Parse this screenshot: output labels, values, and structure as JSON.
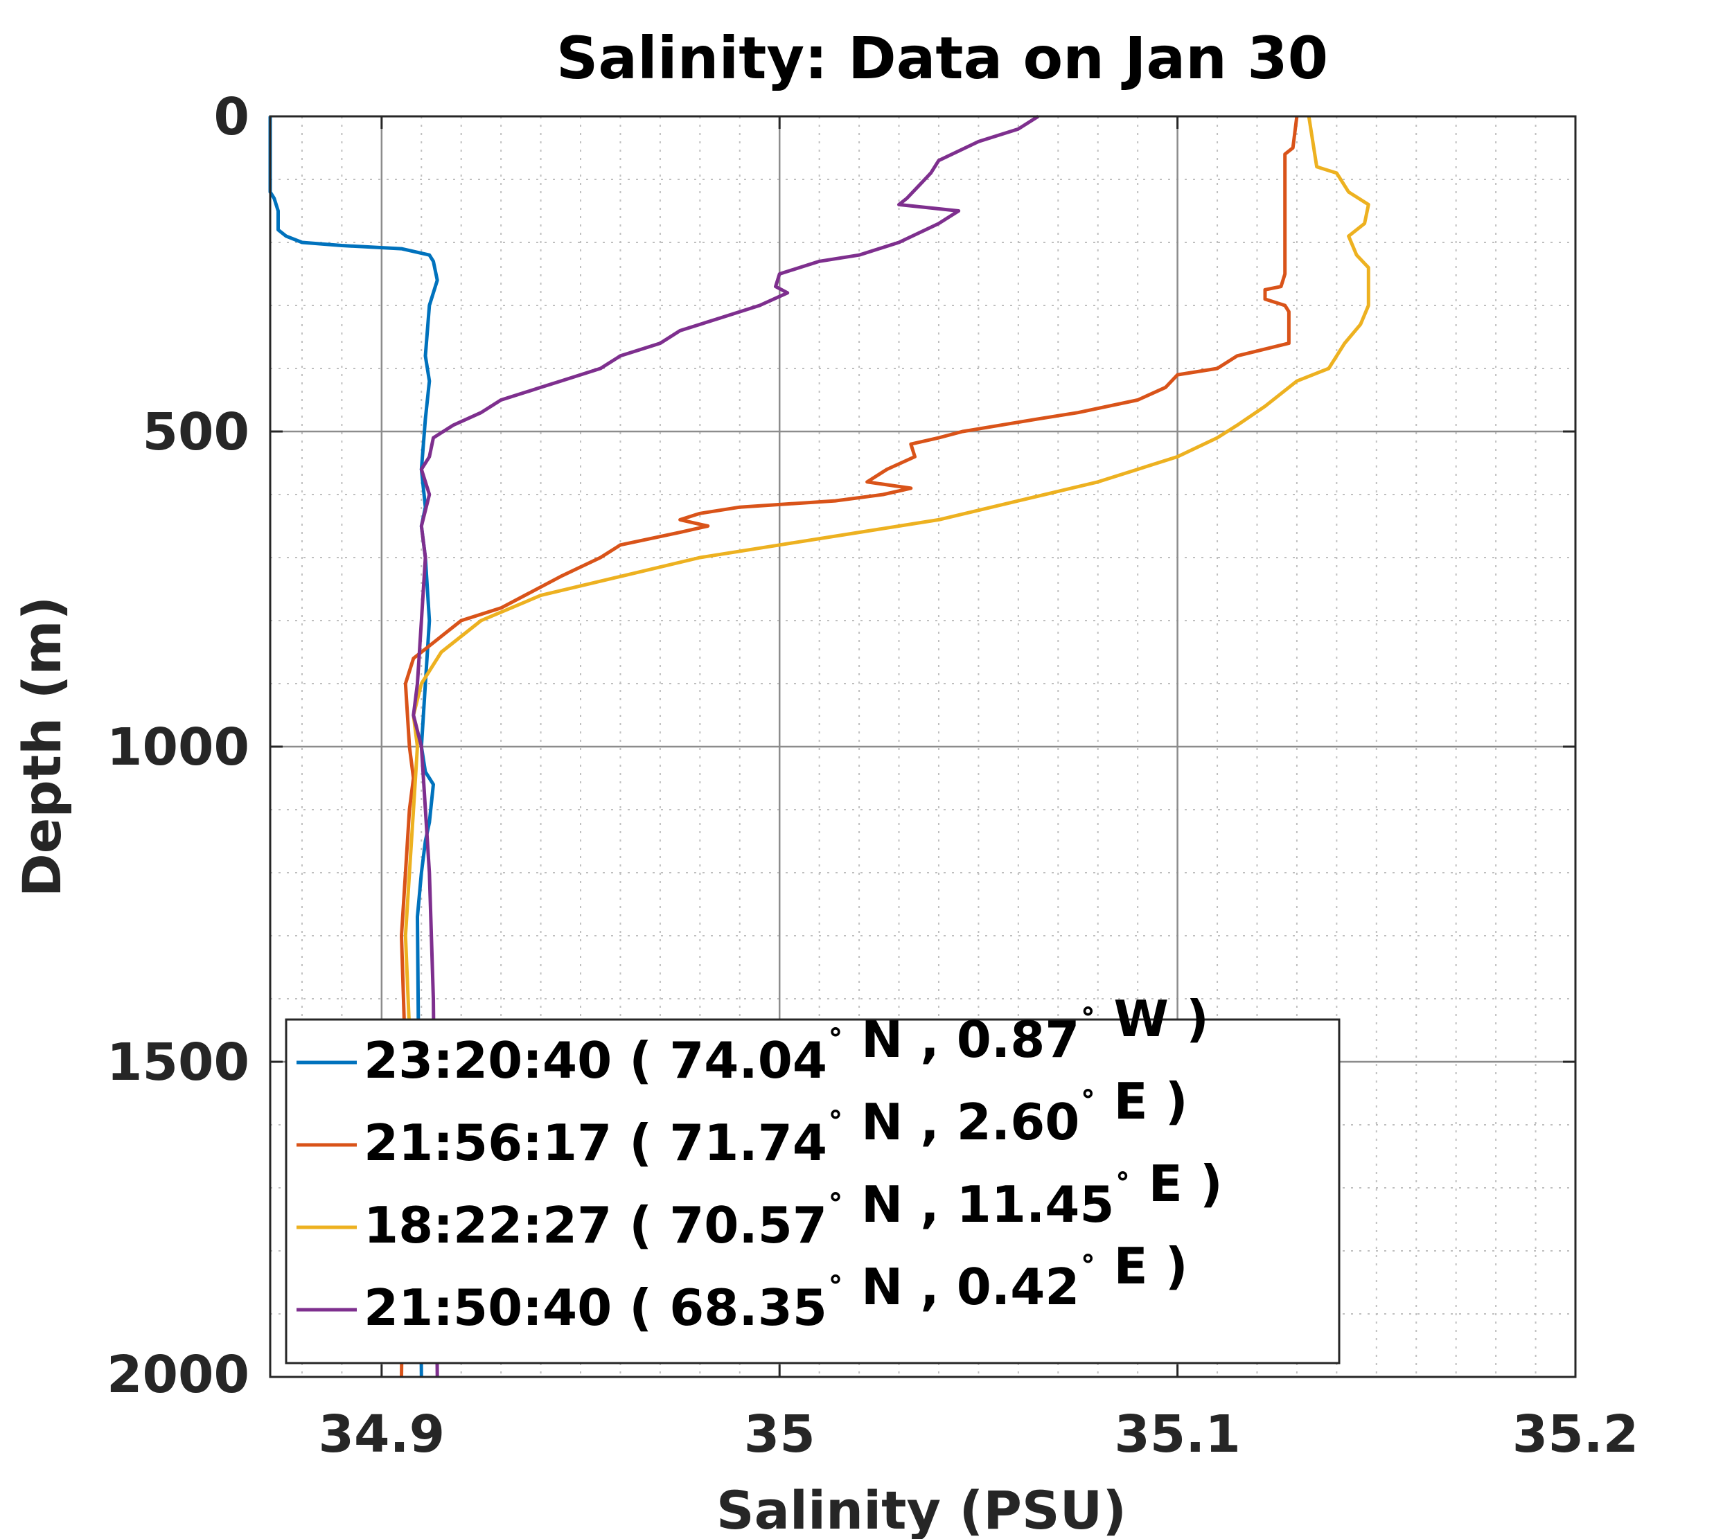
{
  "chart_data": {
    "type": "line",
    "title": "Salinity: Data on Jan 30",
    "xlabel": "Salinity (PSU)",
    "ylabel": "Depth (m)",
    "xlim": [
      34.872,
      35.2
    ],
    "ylim": [
      0,
      2000
    ],
    "y_reversed": true,
    "xticks": [
      34.9,
      35,
      35.1,
      35.2
    ],
    "xtick_labels": [
      "34.9",
      "35",
      "35.1",
      "35.2"
    ],
    "yticks": [
      0,
      500,
      1000,
      1500,
      2000
    ],
    "ytick_labels": [
      "0",
      "500",
      "1000",
      "1500",
      "2000"
    ],
    "grid": true,
    "minor_grid": true,
    "legend_position": "bottom-left",
    "series": [
      {
        "name": "23:20:40 ( 74.04 N , 0.87 W )",
        "legend_parts": [
          "23:20:40 ( 74.04",
          " N , 0.87",
          " W )"
        ],
        "color": "#0072BD",
        "x": [
          34.872,
          34.872,
          34.873,
          34.874,
          34.874,
          34.876,
          34.88,
          34.89,
          34.905,
          34.912,
          34.913,
          34.914,
          34.913,
          34.912,
          34.911,
          34.912,
          34.911,
          34.91,
          34.911,
          34.91,
          34.911,
          34.912,
          34.911,
          34.91,
          34.911,
          34.912,
          34.913,
          34.912,
          34.911,
          34.91,
          34.909,
          34.91
        ],
        "y": [
          0,
          120,
          130,
          150,
          180,
          190,
          200,
          205,
          210,
          220,
          230,
          260,
          280,
          300,
          380,
          420,
          480,
          560,
          620,
          650,
          700,
          800,
          900,
          1000,
          1040,
          1050,
          1060,
          1120,
          1150,
          1200,
          1270,
          2000
        ]
      },
      {
        "name": "21:56:17 ( 71.74 N , 2.60 E )",
        "legend_parts": [
          "21:56:17 ( 71.74",
          " N , 2.60",
          " E )"
        ],
        "color": "#D95319",
        "x": [
          35.13,
          35.129,
          35.127,
          35.127,
          35.126,
          35.122,
          35.122,
          35.127,
          35.128,
          35.128,
          35.115,
          35.11,
          35.1,
          35.097,
          35.09,
          35.075,
          35.065,
          35.046,
          35.04,
          35.033,
          35.034,
          35.027,
          35.022,
          35.033,
          35.026,
          35.014,
          34.99,
          34.98,
          34.975,
          34.982,
          34.975,
          34.96,
          34.955,
          34.945,
          34.93,
          34.92,
          34.912,
          34.908,
          34.906,
          34.907,
          34.908,
          34.907,
          34.906,
          34.905,
          34.906,
          34.905
        ],
        "y": [
          0,
          50,
          60,
          250,
          270,
          275,
          290,
          300,
          310,
          360,
          380,
          400,
          410,
          430,
          450,
          470,
          480,
          500,
          510,
          520,
          540,
          560,
          580,
          590,
          600,
          610,
          620,
          630,
          640,
          650,
          660,
          680,
          700,
          730,
          780,
          800,
          840,
          860,
          900,
          1000,
          1050,
          1100,
          1200,
          1300,
          1500,
          2000
        ]
      },
      {
        "name": "18:22:27 ( 70.57 N , 11.45 E )",
        "legend_parts": [
          "18:22:27 ( 70.57",
          " N , 11.45",
          " E )"
        ],
        "color": "#EDB120",
        "x": [
          35.133,
          35.134,
          35.135,
          35.14,
          35.143,
          35.148,
          35.147,
          35.143,
          35.145,
          35.148,
          35.148,
          35.146,
          35.142,
          35.14,
          35.138,
          35.13,
          35.122,
          35.115,
          35.11,
          35.1,
          35.09,
          35.08,
          35.06,
          35.04,
          35.02,
          35.0,
          34.98,
          34.96,
          34.94,
          34.925,
          34.915,
          34.91,
          34.908,
          34.909,
          34.908,
          34.907,
          34.906,
          34.907
        ],
        "y": [
          0,
          40,
          80,
          90,
          120,
          140,
          170,
          190,
          220,
          240,
          300,
          330,
          360,
          380,
          400,
          420,
          460,
          490,
          510,
          540,
          560,
          580,
          610,
          640,
          660,
          680,
          700,
          730,
          760,
          800,
          850,
          900,
          950,
          1000,
          1100,
          1200,
          1300,
          1450
        ]
      },
      {
        "name": "21:50:40 ( 68.35 N , 0.42 E )",
        "legend_parts": [
          "21:50:40 ( 68.35",
          " N , 0.42",
          " E )"
        ],
        "color": "#7E2F8E",
        "x": [
          35.065,
          35.06,
          35.05,
          35.04,
          35.038,
          35.035,
          35.032,
          35.03,
          35.045,
          35.04,
          35.03,
          35.02,
          35.01,
          35.005,
          35.0,
          34.999,
          35.002,
          34.995,
          34.985,
          34.975,
          34.97,
          34.96,
          34.955,
          34.95,
          34.945,
          34.94,
          34.935,
          34.93,
          34.925,
          34.918,
          34.913,
          34.912,
          34.91,
          34.912,
          34.91,
          34.911,
          34.91,
          34.909,
          34.908,
          34.91,
          34.912,
          34.913,
          34.914
        ],
        "y": [
          0,
          20,
          40,
          70,
          90,
          110,
          130,
          140,
          150,
          170,
          200,
          220,
          230,
          240,
          250,
          270,
          280,
          300,
          320,
          340,
          360,
          380,
          400,
          410,
          420,
          430,
          440,
          450,
          470,
          490,
          510,
          540,
          560,
          600,
          650,
          700,
          800,
          900,
          950,
          1000,
          1200,
          1400,
          2000
        ]
      }
    ]
  }
}
